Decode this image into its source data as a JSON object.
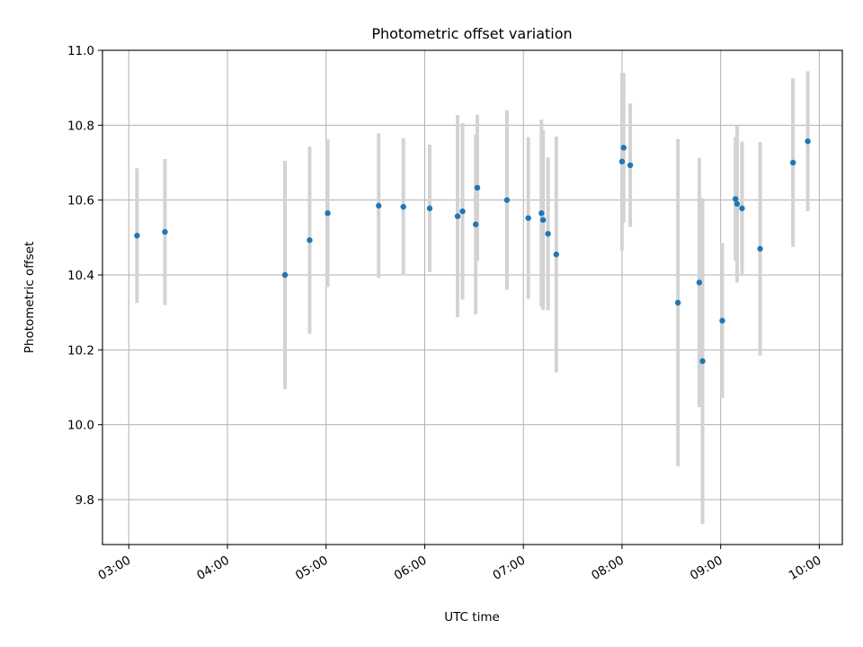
{
  "chart_data": {
    "type": "scatter",
    "title": "Photometric offset variation",
    "xlabel": "UTC time",
    "ylabel": "Photometric offset",
    "x_axis_kind": "time",
    "xlim": [
      "02:44",
      "10:14"
    ],
    "ylim": [
      9.68,
      11.0
    ],
    "x_ticks": [
      "03:00",
      "04:00",
      "05:00",
      "06:00",
      "07:00",
      "08:00",
      "09:00",
      "10:00"
    ],
    "y_ticks": [
      9.8,
      10.0,
      10.2,
      10.4,
      10.6,
      10.8,
      11.0
    ],
    "y_tick_labels": [
      "9.8",
      "10.0",
      "10.2",
      "10.4",
      "10.6",
      "10.8",
      "11.0"
    ],
    "grid": true,
    "x_tick_rotation_deg": 30,
    "colors": {
      "point": "#1f77b4",
      "errorbar": "#d3d3d3",
      "grid": "#b0b0b0"
    },
    "series": [
      {
        "points": [
          {
            "x": "03:05",
            "y": 10.505,
            "err": 0.18
          },
          {
            "x": "03:22",
            "y": 10.515,
            "err": 0.195
          },
          {
            "x": "04:35",
            "y": 10.4,
            "err": 0.305
          },
          {
            "x": "04:50",
            "y": 10.493,
            "err": 0.25
          },
          {
            "x": "05:01",
            "y": 10.565,
            "err": 0.197
          },
          {
            "x": "05:32",
            "y": 10.585,
            "err": 0.193
          },
          {
            "x": "05:47",
            "y": 10.582,
            "err": 0.183
          },
          {
            "x": "06:03",
            "y": 10.578,
            "err": 0.17
          },
          {
            "x": "06:20",
            "y": 10.557,
            "err": 0.27
          },
          {
            "x": "06:23",
            "y": 10.57,
            "err": 0.236
          },
          {
            "x": "06:31",
            "y": 10.535,
            "err": 0.24
          },
          {
            "x": "06:32",
            "y": 10.633,
            "err": 0.195
          },
          {
            "x": "06:50",
            "y": 10.6,
            "err": 0.24
          },
          {
            "x": "07:03",
            "y": 10.552,
            "err": 0.216
          },
          {
            "x": "07:11",
            "y": 10.565,
            "err": 0.25
          },
          {
            "x": "07:12",
            "y": 10.547,
            "err": 0.24
          },
          {
            "x": "07:15",
            "y": 10.51,
            "err": 0.204
          },
          {
            "x": "07:20",
            "y": 10.455,
            "err": 0.315
          },
          {
            "x": "08:00",
            "y": 10.703,
            "err": 0.237
          },
          {
            "x": "08:01",
            "y": 10.74,
            "err": 0.2
          },
          {
            "x": "08:05",
            "y": 10.693,
            "err": 0.165
          },
          {
            "x": "08:34",
            "y": 10.326,
            "err": 0.437
          },
          {
            "x": "08:47",
            "y": 10.38,
            "err": 0.333
          },
          {
            "x": "08:49",
            "y": 10.17,
            "err": 0.435
          },
          {
            "x": "09:01",
            "y": 10.278,
            "err": 0.207
          },
          {
            "x": "09:09",
            "y": 10.603,
            "err": 0.165
          },
          {
            "x": "09:10",
            "y": 10.59,
            "err": 0.21
          },
          {
            "x": "09:13",
            "y": 10.578,
            "err": 0.178
          },
          {
            "x": "09:24",
            "y": 10.47,
            "err": 0.285
          },
          {
            "x": "09:44",
            "y": 10.7,
            "err": 0.225
          },
          {
            "x": "09:53",
            "y": 10.757,
            "err": 0.187
          }
        ]
      }
    ]
  }
}
